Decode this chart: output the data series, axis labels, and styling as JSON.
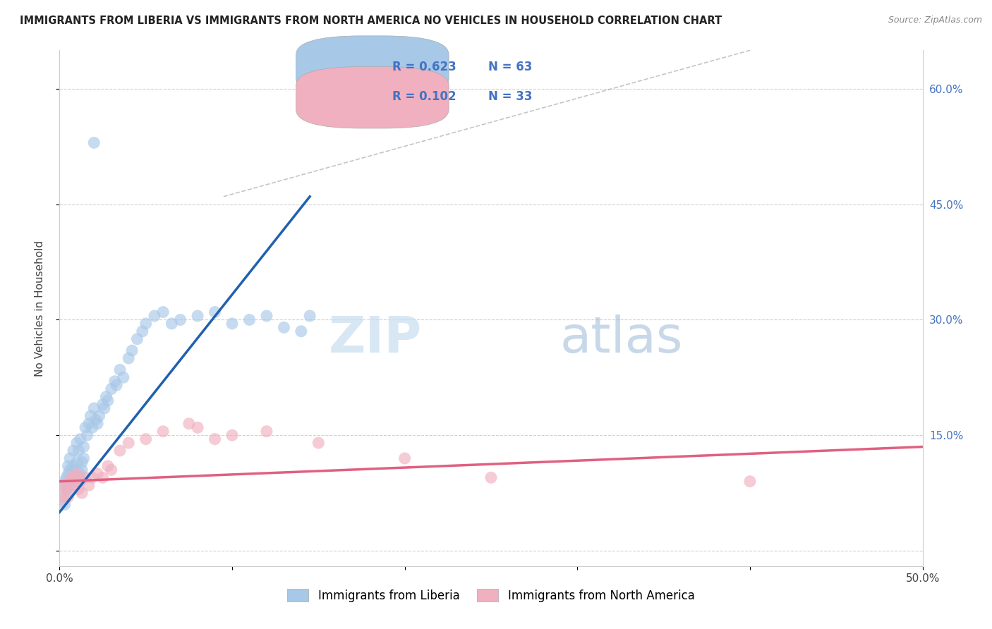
{
  "title": "IMMIGRANTS FROM LIBERIA VS IMMIGRANTS FROM NORTH AMERICA NO VEHICLES IN HOUSEHOLD CORRELATION CHART",
  "source": "Source: ZipAtlas.com",
  "ylabel": "No Vehicles in Household",
  "xlim": [
    0.0,
    0.5
  ],
  "ylim": [
    -0.02,
    0.65
  ],
  "x_ticks": [
    0.0,
    0.1,
    0.2,
    0.3,
    0.4,
    0.5
  ],
  "x_tick_labels": [
    "0.0%",
    "",
    "",
    "",
    "",
    "50.0%"
  ],
  "y_ticks": [
    0.0,
    0.15,
    0.3,
    0.45,
    0.6
  ],
  "y_tick_labels": [
    "",
    "",
    "",
    "",
    ""
  ],
  "right_y_ticks": [
    0.0,
    0.15,
    0.3,
    0.45,
    0.6
  ],
  "right_y_tick_labels": [
    "",
    "15.0%",
    "30.0%",
    "45.0%",
    "60.0%"
  ],
  "legend_label1": "Immigrants from Liberia",
  "legend_label2": "Immigrants from North America",
  "R1": 0.623,
  "N1": 63,
  "R2": 0.102,
  "N2": 33,
  "color_blue": "#a8c8e8",
  "color_pink": "#f0b0c0",
  "line_blue": "#2060b0",
  "line_pink": "#e06080",
  "watermark_zip": "ZIP",
  "watermark_atlas": "atlas",
  "blue_line_x": [
    0.0,
    0.145
  ],
  "blue_line_y": [
    0.05,
    0.46
  ],
  "pink_line_x": [
    0.0,
    0.5
  ],
  "pink_line_y": [
    0.09,
    0.135
  ],
  "diag_line_x": [
    0.095,
    0.4
  ],
  "diag_line_y": [
    0.46,
    0.65
  ],
  "blue_points_x": [
    0.001,
    0.002,
    0.003,
    0.003,
    0.004,
    0.004,
    0.005,
    0.005,
    0.005,
    0.006,
    0.006,
    0.007,
    0.007,
    0.008,
    0.008,
    0.009,
    0.009,
    0.01,
    0.01,
    0.011,
    0.011,
    0.012,
    0.012,
    0.013,
    0.013,
    0.014,
    0.014,
    0.015,
    0.016,
    0.017,
    0.018,
    0.019,
    0.02,
    0.021,
    0.022,
    0.023,
    0.025,
    0.026,
    0.027,
    0.028,
    0.03,
    0.032,
    0.033,
    0.035,
    0.037,
    0.04,
    0.042,
    0.045,
    0.048,
    0.05,
    0.055,
    0.06,
    0.065,
    0.07,
    0.08,
    0.09,
    0.1,
    0.11,
    0.12,
    0.13,
    0.14,
    0.145,
    0.02
  ],
  "blue_points_y": [
    0.085,
    0.07,
    0.06,
    0.09,
    0.08,
    0.095,
    0.1,
    0.11,
    0.075,
    0.105,
    0.12,
    0.085,
    0.095,
    0.11,
    0.13,
    0.09,
    0.105,
    0.115,
    0.14,
    0.095,
    0.13,
    0.1,
    0.145,
    0.105,
    0.115,
    0.12,
    0.135,
    0.16,
    0.15,
    0.165,
    0.175,
    0.16,
    0.185,
    0.17,
    0.165,
    0.175,
    0.19,
    0.185,
    0.2,
    0.195,
    0.21,
    0.22,
    0.215,
    0.235,
    0.225,
    0.25,
    0.26,
    0.275,
    0.285,
    0.295,
    0.305,
    0.31,
    0.295,
    0.3,
    0.305,
    0.31,
    0.295,
    0.3,
    0.305,
    0.29,
    0.285,
    0.305,
    0.53
  ],
  "pink_points_x": [
    0.001,
    0.002,
    0.003,
    0.004,
    0.005,
    0.006,
    0.007,
    0.008,
    0.009,
    0.01,
    0.011,
    0.012,
    0.013,
    0.015,
    0.017,
    0.019,
    0.022,
    0.025,
    0.028,
    0.03,
    0.035,
    0.04,
    0.05,
    0.06,
    0.075,
    0.08,
    0.09,
    0.1,
    0.12,
    0.15,
    0.2,
    0.25,
    0.4
  ],
  "pink_points_y": [
    0.075,
    0.065,
    0.085,
    0.08,
    0.07,
    0.09,
    0.095,
    0.085,
    0.095,
    0.1,
    0.08,
    0.09,
    0.075,
    0.095,
    0.085,
    0.095,
    0.1,
    0.095,
    0.11,
    0.105,
    0.13,
    0.14,
    0.145,
    0.155,
    0.165,
    0.16,
    0.145,
    0.15,
    0.155,
    0.14,
    0.12,
    0.095,
    0.09
  ]
}
